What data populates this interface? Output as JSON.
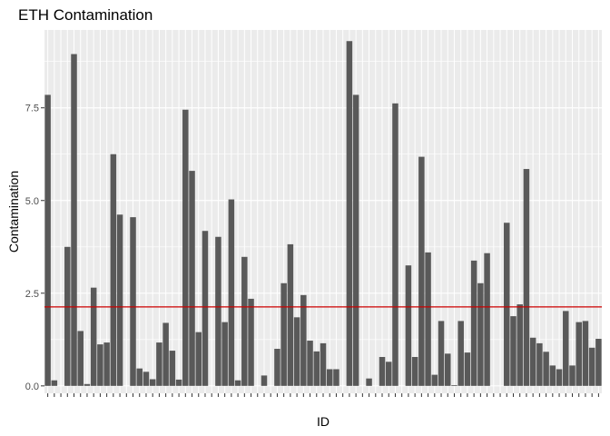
{
  "chart_data": {
    "type": "bar",
    "title": "ETH Contamination",
    "xlabel": "ID",
    "ylabel": "Contamination",
    "ylim": [
      -0.2,
      9.6
    ],
    "yticks": [
      0.0,
      2.5,
      5.0,
      7.5
    ],
    "ytick_labels": [
      "0.0",
      "2.5",
      "5.0",
      "7.5"
    ],
    "grid": true,
    "legend": "none",
    "reference_line": {
      "value": 2.13,
      "color": "#cc0000"
    },
    "bar_color": "#595959",
    "panel_color": "#ebebeb",
    "values": [
      7.85,
      0.15,
      0,
      3.75,
      8.95,
      1.48,
      0.05,
      2.65,
      1.12,
      1.17,
      6.25,
      4.62,
      0,
      4.55,
      0.47,
      0.38,
      0.18,
      1.17,
      1.7,
      0.95,
      0.17,
      7.45,
      5.8,
      1.45,
      4.18,
      0,
      4.02,
      1.72,
      5.03,
      0.15,
      3.48,
      2.35,
      0,
      0.28,
      0,
      1.0,
      2.77,
      3.82,
      1.85,
      2.45,
      1.22,
      0.93,
      1.15,
      0.45,
      0.45,
      0,
      9.3,
      7.85,
      0,
      0.2,
      0,
      0.78,
      0.65,
      7.62,
      0,
      3.25,
      0.78,
      6.18,
      3.6,
      0.3,
      1.75,
      0.87,
      0.02,
      1.75,
      0.9,
      3.38,
      2.77,
      3.58,
      0,
      0,
      4.4,
      1.88,
      2.2,
      5.85,
      1.3,
      1.15,
      0.92,
      0.55,
      0.45,
      2.02,
      0.55,
      1.72,
      1.75,
      1.03,
      1.27
    ]
  }
}
